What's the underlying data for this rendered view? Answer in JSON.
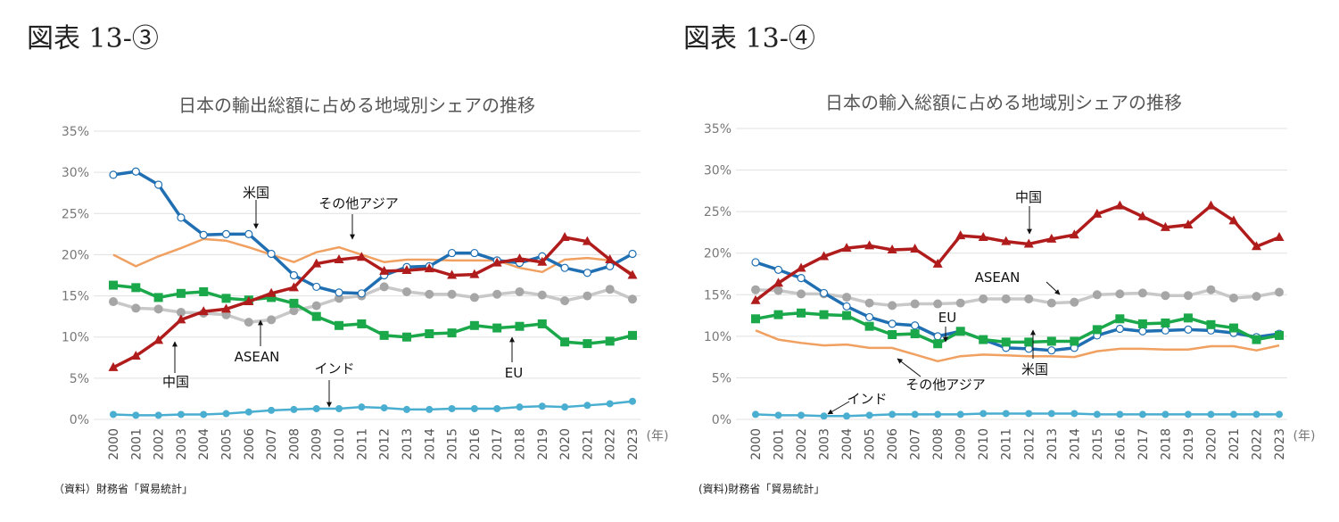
{
  "left": {
    "heading": "図表 13-③",
    "source": "（資料）財務省「貿易統計」",
    "chart_data": {
      "type": "line",
      "title": "日本の輸出総額に占める地域別シェアの推移",
      "xlabel": "(年)",
      "ylabel": "",
      "ylim": [
        0,
        35
      ],
      "yticks": [
        "0%",
        "5%",
        "10%",
        "15%",
        "20%",
        "25%",
        "30%",
        "35%"
      ],
      "grid": true,
      "categories": [
        "2000",
        "2001",
        "2002",
        "2003",
        "2004",
        "2005",
        "2006",
        "2007",
        "2008",
        "2009",
        "2010",
        "2011",
        "2012",
        "2013",
        "2014",
        "2015",
        "2016",
        "2017",
        "2018",
        "2019",
        "2020",
        "2021",
        "2022",
        "2023"
      ],
      "series": [
        {
          "name": "その他アジア",
          "color": "#f0a060",
          "marker": "none",
          "values": [
            20.0,
            18.6,
            19.8,
            20.8,
            21.9,
            21.7,
            20.9,
            20.0,
            19.1,
            20.3,
            20.9,
            20.0,
            19.1,
            19.4,
            19.4,
            19.3,
            19.3,
            19.3,
            18.4,
            17.9,
            19.4,
            19.6,
            19.3,
            17.7
          ]
        },
        {
          "name": "ASEAN",
          "color": "#c8c8c8",
          "markerColor": "#a6a6a6",
          "marker": "circle-filled",
          "values": [
            14.3,
            13.5,
            13.4,
            13.0,
            12.9,
            12.7,
            11.8,
            12.1,
            13.2,
            13.8,
            14.7,
            15.0,
            16.1,
            15.5,
            15.2,
            15.2,
            14.8,
            15.2,
            15.5,
            15.1,
            14.4,
            15.0,
            15.8,
            14.6
          ]
        },
        {
          "name": "EU",
          "color": "#1aa84a",
          "marker": "square",
          "values": [
            16.3,
            16.0,
            14.8,
            15.3,
            15.5,
            14.7,
            14.5,
            14.8,
            14.1,
            12.5,
            11.4,
            11.6,
            10.2,
            10.0,
            10.4,
            10.5,
            11.4,
            11.1,
            11.3,
            11.6,
            9.4,
            9.2,
            9.5,
            10.2
          ]
        },
        {
          "name": "米国",
          "color": "#1f6fb2",
          "marker": "circle-open",
          "values": [
            29.7,
            30.1,
            28.5,
            24.5,
            22.4,
            22.5,
            22.5,
            20.1,
            17.5,
            16.1,
            15.4,
            15.3,
            17.5,
            18.5,
            18.6,
            20.2,
            20.2,
            19.3,
            19.0,
            19.8,
            18.4,
            17.8,
            18.6,
            20.1
          ]
        },
        {
          "name": "中国",
          "color": "#b01c1c",
          "marker": "triangle",
          "values": [
            6.3,
            7.7,
            9.6,
            12.1,
            13.1,
            13.4,
            14.3,
            15.3,
            16.0,
            18.9,
            19.4,
            19.7,
            18.0,
            18.1,
            18.3,
            17.5,
            17.6,
            19.0,
            19.5,
            19.1,
            22.1,
            21.6,
            19.4,
            17.5
          ]
        },
        {
          "name": "インド",
          "color": "#4aaed0",
          "marker": "circle-filled",
          "values": [
            0.6,
            0.5,
            0.5,
            0.6,
            0.6,
            0.7,
            0.9,
            1.1,
            1.2,
            1.3,
            1.3,
            1.5,
            1.4,
            1.2,
            1.2,
            1.3,
            1.3,
            1.3,
            1.5,
            1.6,
            1.5,
            1.7,
            1.9,
            2.2
          ]
        }
      ],
      "annotations": [
        "米国",
        "その他アジア",
        "中国",
        "ASEAN",
        "インド",
        "EU"
      ]
    }
  },
  "right": {
    "heading": "図表 13-④",
    "source": "(資料)財務省「貿易統計」",
    "chart_data": {
      "type": "line",
      "title": "日本の輸入総額に占める地域別シェアの推移",
      "xlabel": "(年)",
      "ylabel": "",
      "ylim": [
        0,
        35
      ],
      "yticks": [
        "0%",
        "5%",
        "10%",
        "15%",
        "20%",
        "25%",
        "30%",
        "35%"
      ],
      "grid": true,
      "categories": [
        "2000",
        "2001",
        "2002",
        "2003",
        "2004",
        "2005",
        "2006",
        "2007",
        "2008",
        "2009",
        "2010",
        "2011",
        "2012",
        "2013",
        "2014",
        "2015",
        "2016",
        "2017",
        "2018",
        "2019",
        "2020",
        "2021",
        "2022",
        "2023"
      ],
      "series": [
        {
          "name": "その他アジア",
          "color": "#f0a060",
          "marker": "none",
          "values": [
            10.7,
            9.6,
            9.2,
            8.9,
            9.0,
            8.6,
            8.6,
            7.8,
            7.0,
            7.6,
            7.8,
            7.7,
            7.6,
            7.6,
            7.5,
            8.2,
            8.5,
            8.5,
            8.4,
            8.4,
            8.8,
            8.8,
            8.3,
            8.9
          ]
        },
        {
          "name": "ASEAN",
          "color": "#c8c8c8",
          "markerColor": "#a6a6a6",
          "marker": "circle-filled",
          "values": [
            15.6,
            15.5,
            15.1,
            15.1,
            14.7,
            14.0,
            13.7,
            13.9,
            13.9,
            14.0,
            14.5,
            14.5,
            14.5,
            14.0,
            14.1,
            15.0,
            15.1,
            15.2,
            14.9,
            14.9,
            15.6,
            14.6,
            14.8,
            15.3
          ]
        },
        {
          "name": "米国",
          "color": "#1f6fb2",
          "marker": "circle-open",
          "values": [
            18.9,
            18.0,
            17.0,
            15.2,
            13.6,
            12.3,
            11.5,
            11.3,
            10.0,
            10.6,
            9.6,
            8.6,
            8.5,
            8.3,
            8.6,
            10.1,
            10.9,
            10.6,
            10.7,
            10.8,
            10.7,
            10.4,
            9.9,
            10.3
          ]
        },
        {
          "name": "EU",
          "color": "#1aa84a",
          "marker": "square",
          "values": [
            12.1,
            12.6,
            12.8,
            12.6,
            12.5,
            11.2,
            10.2,
            10.3,
            9.1,
            10.6,
            9.6,
            9.3,
            9.3,
            9.4,
            9.4,
            10.8,
            12.1,
            11.5,
            11.6,
            12.2,
            11.4,
            11.0,
            9.6,
            10.1
          ]
        },
        {
          "name": "中国",
          "color": "#b01c1c",
          "marker": "triangle",
          "values": [
            14.3,
            16.4,
            18.2,
            19.6,
            20.6,
            20.9,
            20.4,
            20.5,
            18.7,
            22.1,
            21.9,
            21.4,
            21.1,
            21.7,
            22.2,
            24.7,
            25.7,
            24.4,
            23.1,
            23.4,
            25.7,
            23.9,
            20.8,
            21.9
          ]
        },
        {
          "name": "インド",
          "color": "#4aaed0",
          "marker": "circle-filled",
          "values": [
            0.6,
            0.5,
            0.5,
            0.4,
            0.4,
            0.5,
            0.6,
            0.6,
            0.6,
            0.6,
            0.7,
            0.7,
            0.7,
            0.7,
            0.7,
            0.6,
            0.6,
            0.6,
            0.6,
            0.6,
            0.6,
            0.6,
            0.6,
            0.6
          ]
        }
      ],
      "annotations": [
        "中国",
        "ASEAN",
        "EU",
        "米国",
        "その他アジア",
        "インド"
      ]
    }
  }
}
